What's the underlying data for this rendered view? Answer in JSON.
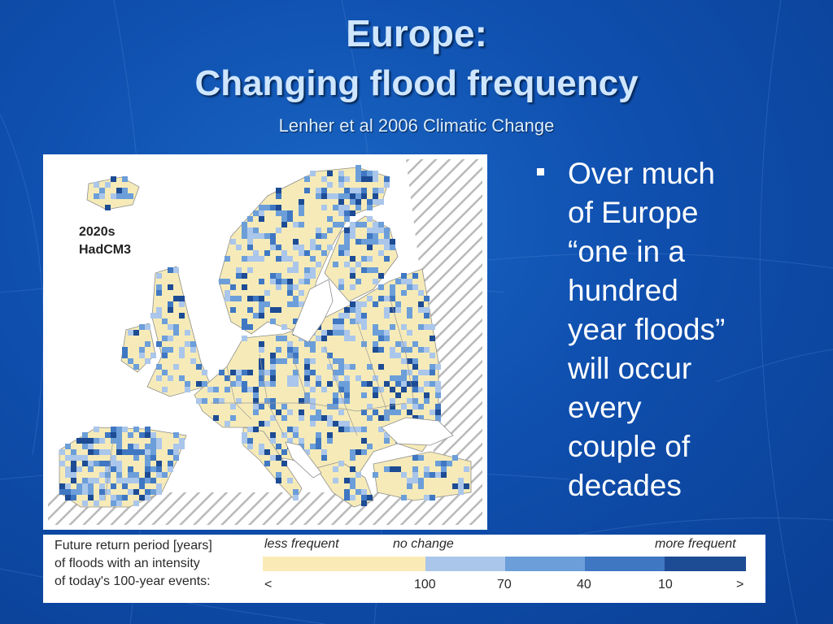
{
  "slide": {
    "title_line1": "Europe:",
    "title_line2": "Changing flood frequency",
    "citation": "Lenher et al 2006 Climatic Change"
  },
  "map": {
    "label_period": "2020s",
    "label_model": "HadCM3",
    "colors": {
      "land_base": "#f6ebb8",
      "sea": "#ffffff",
      "no_change": "#aac6ea",
      "freq_70": "#6c9ed9",
      "freq_40": "#3f77c2",
      "freq_10": "#1d4b94",
      "borders": "#8f8f8f",
      "hatch": "#b9b9b9"
    }
  },
  "bullet": {
    "lines": [
      "Over much",
      "of Europe",
      "“one in a",
      "hundred",
      "year floods”",
      "will occur",
      "every",
      "couple of",
      "decades"
    ]
  },
  "legend": {
    "desc_line1": "Future return period [years]",
    "desc_line2": "of floods with an intensity",
    "desc_line3": "of today's 100-year events:",
    "less_frequent": "less frequent",
    "no_change": "no change",
    "more_frequent": "more frequent",
    "ticks": [
      "<",
      "100",
      "70",
      "40",
      "10",
      ">"
    ],
    "bins": [
      {
        "color": "#faeab5"
      },
      {
        "color": "#aac6ea"
      },
      {
        "color": "#6c9ed9"
      },
      {
        "color": "#3f77c2"
      },
      {
        "color": "#1d4b94"
      }
    ]
  }
}
